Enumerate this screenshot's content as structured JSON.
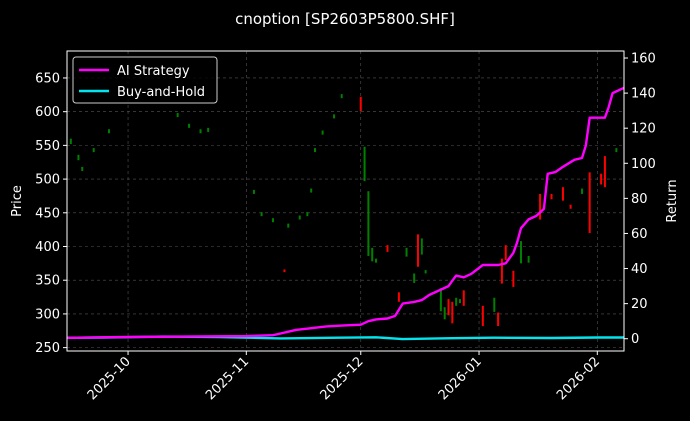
{
  "chart_data": {
    "type": "line",
    "title": "cnoption [SP2603P5800.SHF]",
    "xlabel": "",
    "ylabel_left": "Price",
    "ylabel_right": "Return",
    "x_ticks": [
      "2025-10",
      "2025-11",
      "2025-12",
      "2026-01",
      "2026-02"
    ],
    "x_tick_dates": [
      "2025-10-01",
      "2025-11-01",
      "2025-12-01",
      "2026-01-01",
      "2026-02-01"
    ],
    "xlim": [
      "2025-09-15",
      "2026-02-08"
    ],
    "ylim_left": [
      245,
      690
    ],
    "yticks_left": [
      250,
      300,
      350,
      400,
      450,
      500,
      550,
      600,
      650
    ],
    "ylim_right": [
      -7,
      164
    ],
    "yticks_right": [
      0,
      20,
      40,
      60,
      80,
      100,
      120,
      140,
      160
    ],
    "grid": true,
    "legend_position": "top-left",
    "colors": {
      "background": "#000000",
      "ai_strategy": "#ff00ff",
      "buy_and_hold": "#00e5ee",
      "up": "#008000",
      "down": "#ff0000",
      "grid": "#555555"
    },
    "series": [
      {
        "name": "AI Strategy",
        "axis": "right",
        "points": [
          [
            "2025-09-15",
            0.5
          ],
          [
            "2025-10-01",
            1
          ],
          [
            "2025-11-01",
            1.5
          ],
          [
            "2025-11-08",
            2
          ],
          [
            "2025-11-10",
            3
          ],
          [
            "2025-11-12",
            4
          ],
          [
            "2025-11-14",
            5
          ],
          [
            "2025-11-18",
            6
          ],
          [
            "2025-11-22",
            7
          ],
          [
            "2025-11-26",
            7.5
          ],
          [
            "2025-12-01",
            8
          ],
          [
            "2025-12-03",
            10
          ],
          [
            "2025-12-05",
            11
          ],
          [
            "2025-12-08",
            11.5
          ],
          [
            "2025-12-10",
            13
          ],
          [
            "2025-12-12",
            20
          ],
          [
            "2025-12-15",
            21
          ],
          [
            "2025-12-17",
            22
          ],
          [
            "2025-12-19",
            25
          ],
          [
            "2025-12-22",
            28
          ],
          [
            "2025-12-24",
            30
          ],
          [
            "2025-12-26",
            36
          ],
          [
            "2025-12-28",
            35
          ],
          [
            "2025-12-30",
            37
          ],
          [
            "2026-01-02",
            42
          ],
          [
            "2026-01-06",
            42
          ],
          [
            "2026-01-08",
            43
          ],
          [
            "2026-01-10",
            49
          ],
          [
            "2026-01-11",
            55
          ],
          [
            "2026-01-12",
            63
          ],
          [
            "2026-01-14",
            68
          ],
          [
            "2026-01-16",
            70
          ],
          [
            "2026-01-18",
            74
          ],
          [
            "2026-01-19",
            94
          ],
          [
            "2026-01-21",
            95
          ],
          [
            "2026-01-23",
            98
          ],
          [
            "2026-01-26",
            102
          ],
          [
            "2026-01-28",
            103
          ],
          [
            "2026-01-29",
            110
          ],
          [
            "2026-01-30",
            126
          ],
          [
            "2026-02-03",
            126
          ],
          [
            "2026-02-04",
            132
          ],
          [
            "2026-02-05",
            140
          ],
          [
            "2026-02-08",
            143
          ]
        ]
      },
      {
        "name": "Buy-and-Hold",
        "axis": "right",
        "points": [
          [
            "2025-09-15",
            0.5
          ],
          [
            "2025-09-25",
            0.7
          ],
          [
            "2025-10-10",
            1.2
          ],
          [
            "2025-10-25",
            1
          ],
          [
            "2025-11-10",
            0.2
          ],
          [
            "2025-11-25",
            0.6
          ],
          [
            "2025-12-05",
            0.8
          ],
          [
            "2025-12-12",
            -0.2
          ],
          [
            "2025-12-25",
            0.3
          ],
          [
            "2026-01-05",
            0.6
          ],
          [
            "2026-01-20",
            0.4
          ],
          [
            "2026-02-01",
            0.7
          ],
          [
            "2026-02-08",
            0.7
          ]
        ]
      }
    ],
    "candles": [
      [
        "2025-09-16",
        552,
        560
      ],
      [
        "2025-09-18",
        528,
        536
      ],
      [
        "2025-09-19",
        512,
        518
      ],
      [
        "2025-09-22",
        540,
        546
      ],
      [
        "2025-09-26",
        568,
        574
      ],
      [
        "2025-10-14",
        592,
        598
      ],
      [
        "2025-10-17",
        576,
        582
      ],
      [
        "2025-10-20",
        568,
        574
      ],
      [
        "2025-10-22",
        570,
        576
      ],
      [
        "2025-11-03",
        478,
        484
      ],
      [
        "2025-11-05",
        445,
        451
      ],
      [
        "2025-11-08",
        436,
        442
      ],
      [
        "2025-11-11",
        366,
        362
      ],
      [
        "2025-11-12",
        428,
        434
      ],
      [
        "2025-11-15",
        440,
        446
      ],
      [
        "2025-11-17",
        445,
        451
      ],
      [
        "2025-11-18",
        480,
        486
      ],
      [
        "2025-11-19",
        540,
        546
      ],
      [
        "2025-11-21",
        566,
        572
      ],
      [
        "2025-11-24",
        590,
        596
      ],
      [
        "2025-11-26",
        620,
        626
      ],
      [
        "2025-12-01",
        622,
        601
      ],
      [
        "2025-12-02",
        497,
        548
      ],
      [
        "2025-12-03",
        386,
        482
      ],
      [
        "2025-12-04",
        378,
        398
      ],
      [
        "2025-12-05",
        376,
        382
      ],
      [
        "2025-12-08",
        402,
        392
      ],
      [
        "2025-12-11",
        332,
        318
      ],
      [
        "2025-12-13",
        385,
        398
      ],
      [
        "2025-12-15",
        346,
        360
      ],
      [
        "2025-12-16",
        418,
        370
      ],
      [
        "2025-12-17",
        388,
        412
      ],
      [
        "2025-12-18",
        360,
        365
      ],
      [
        "2025-12-22",
        304,
        338
      ],
      [
        "2025-12-23",
        292,
        310
      ],
      [
        "2025-12-24",
        322,
        298
      ],
      [
        "2025-12-25",
        318,
        286
      ],
      [
        "2025-12-26",
        312,
        324
      ],
      [
        "2025-12-27",
        316,
        322
      ],
      [
        "2025-12-28",
        335,
        312
      ],
      [
        "2026-01-02",
        312,
        282
      ],
      [
        "2026-01-05",
        303,
        324
      ],
      [
        "2026-01-06",
        302,
        282
      ],
      [
        "2026-01-07",
        382,
        345
      ],
      [
        "2026-01-08",
        402,
        380
      ],
      [
        "2026-01-10",
        364,
        340
      ],
      [
        "2026-01-12",
        375,
        408
      ],
      [
        "2026-01-14",
        376,
        386
      ],
      [
        "2026-01-17",
        478,
        440
      ],
      [
        "2026-01-20",
        478,
        470
      ],
      [
        "2026-01-23",
        488,
        468
      ],
      [
        "2026-01-25",
        462,
        456
      ],
      [
        "2026-01-28",
        478,
        486
      ],
      [
        "2026-01-30",
        510,
        420
      ],
      [
        "2026-02-02",
        508,
        492
      ],
      [
        "2026-02-03",
        534,
        488
      ],
      [
        "2026-02-06",
        540,
        546
      ]
    ]
  },
  "legend": {
    "items": [
      {
        "label": "AI Strategy"
      },
      {
        "label": "Buy-and-Hold"
      }
    ]
  }
}
